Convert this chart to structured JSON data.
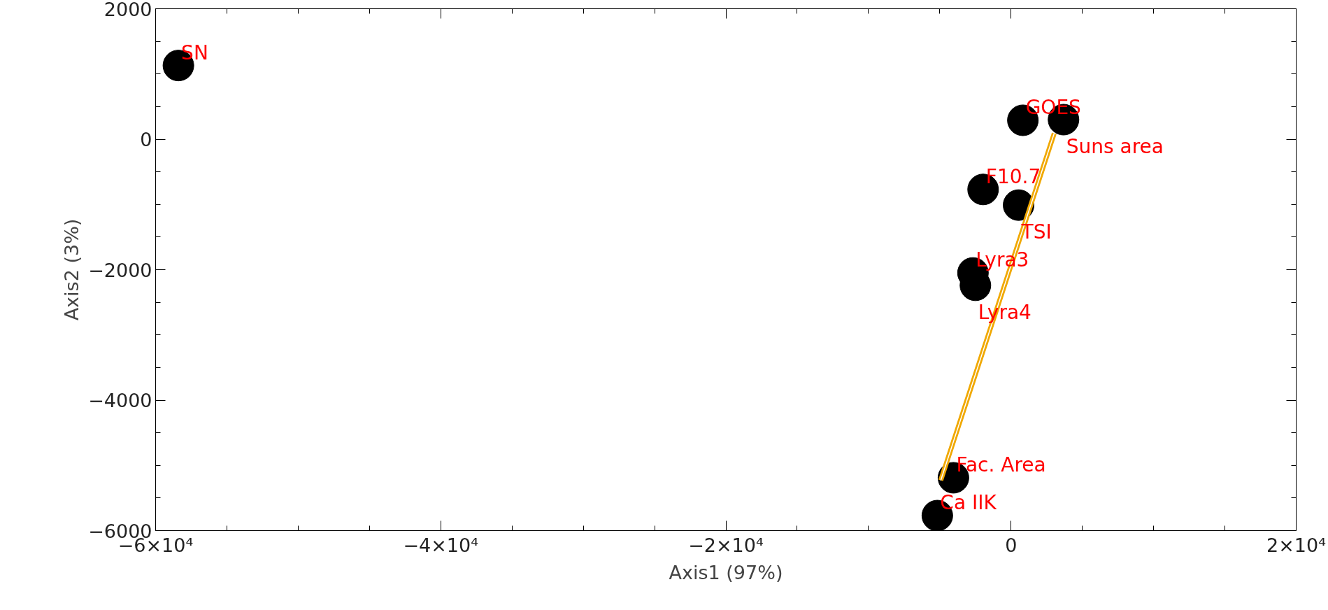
{
  "chart_data": {
    "type": "scatter",
    "xlabel": "Axis1 (97%)",
    "ylabel": "Axis2 (3%)",
    "xlim": [
      -60000,
      20000
    ],
    "ylim": [
      -6000,
      2000
    ],
    "xticks": [
      {
        "value": -60000,
        "label": "−6×10⁴"
      },
      {
        "value": -40000,
        "label": "−4×10⁴"
      },
      {
        "value": -20000,
        "label": "−2×10⁴"
      },
      {
        "value": 0,
        "label": "0"
      },
      {
        "value": 20000,
        "label": "2×10⁴"
      }
    ],
    "yticks": [
      {
        "value": -6000,
        "label": "−6000"
      },
      {
        "value": -4000,
        "label": "−4000"
      },
      {
        "value": -2000,
        "label": "−2000"
      },
      0,
      2000
    ],
    "grid": false,
    "marker": "circle",
    "series": [
      {
        "color": "#000000",
        "x": [
          -58400,
          830,
          3680,
          -1960,
          530,
          -2670,
          -2500,
          -4040,
          -5170
        ],
        "values": [
          1130,
          290,
          300,
          -770,
          -1010,
          -2050,
          -2240,
          -5190,
          -5770
        ]
      },
      {
        "type": "line",
        "color": "#f0a800",
        "line_style": "solid",
        "marker": "none",
        "x": [
          -4930,
          3030
        ],
        "values": [
          -5230,
          90
        ]
      }
    ],
    "annotations": [
      {
        "text": "SN",
        "x": -58400,
        "y": 1130
      },
      {
        "text": "GOES",
        "x": 830,
        "y": 290
      },
      {
        "text": "Suns area",
        "x": 3680,
        "y": 300
      },
      {
        "text": "F10.7",
        "x": -1960,
        "y": -770
      },
      {
        "text": "TSI",
        "x": 530,
        "y": -1010
      },
      {
        "text": "Lyra3",
        "x": -2670,
        "y": -2050
      },
      {
        "text": "Lyra4",
        "x": -2500,
        "y": -2240
      },
      {
        "text": "Fac. Area",
        "x": -4040,
        "y": -5190
      },
      {
        "text": "Ca IIK",
        "x": -5170,
        "y": -5770
      }
    ]
  }
}
